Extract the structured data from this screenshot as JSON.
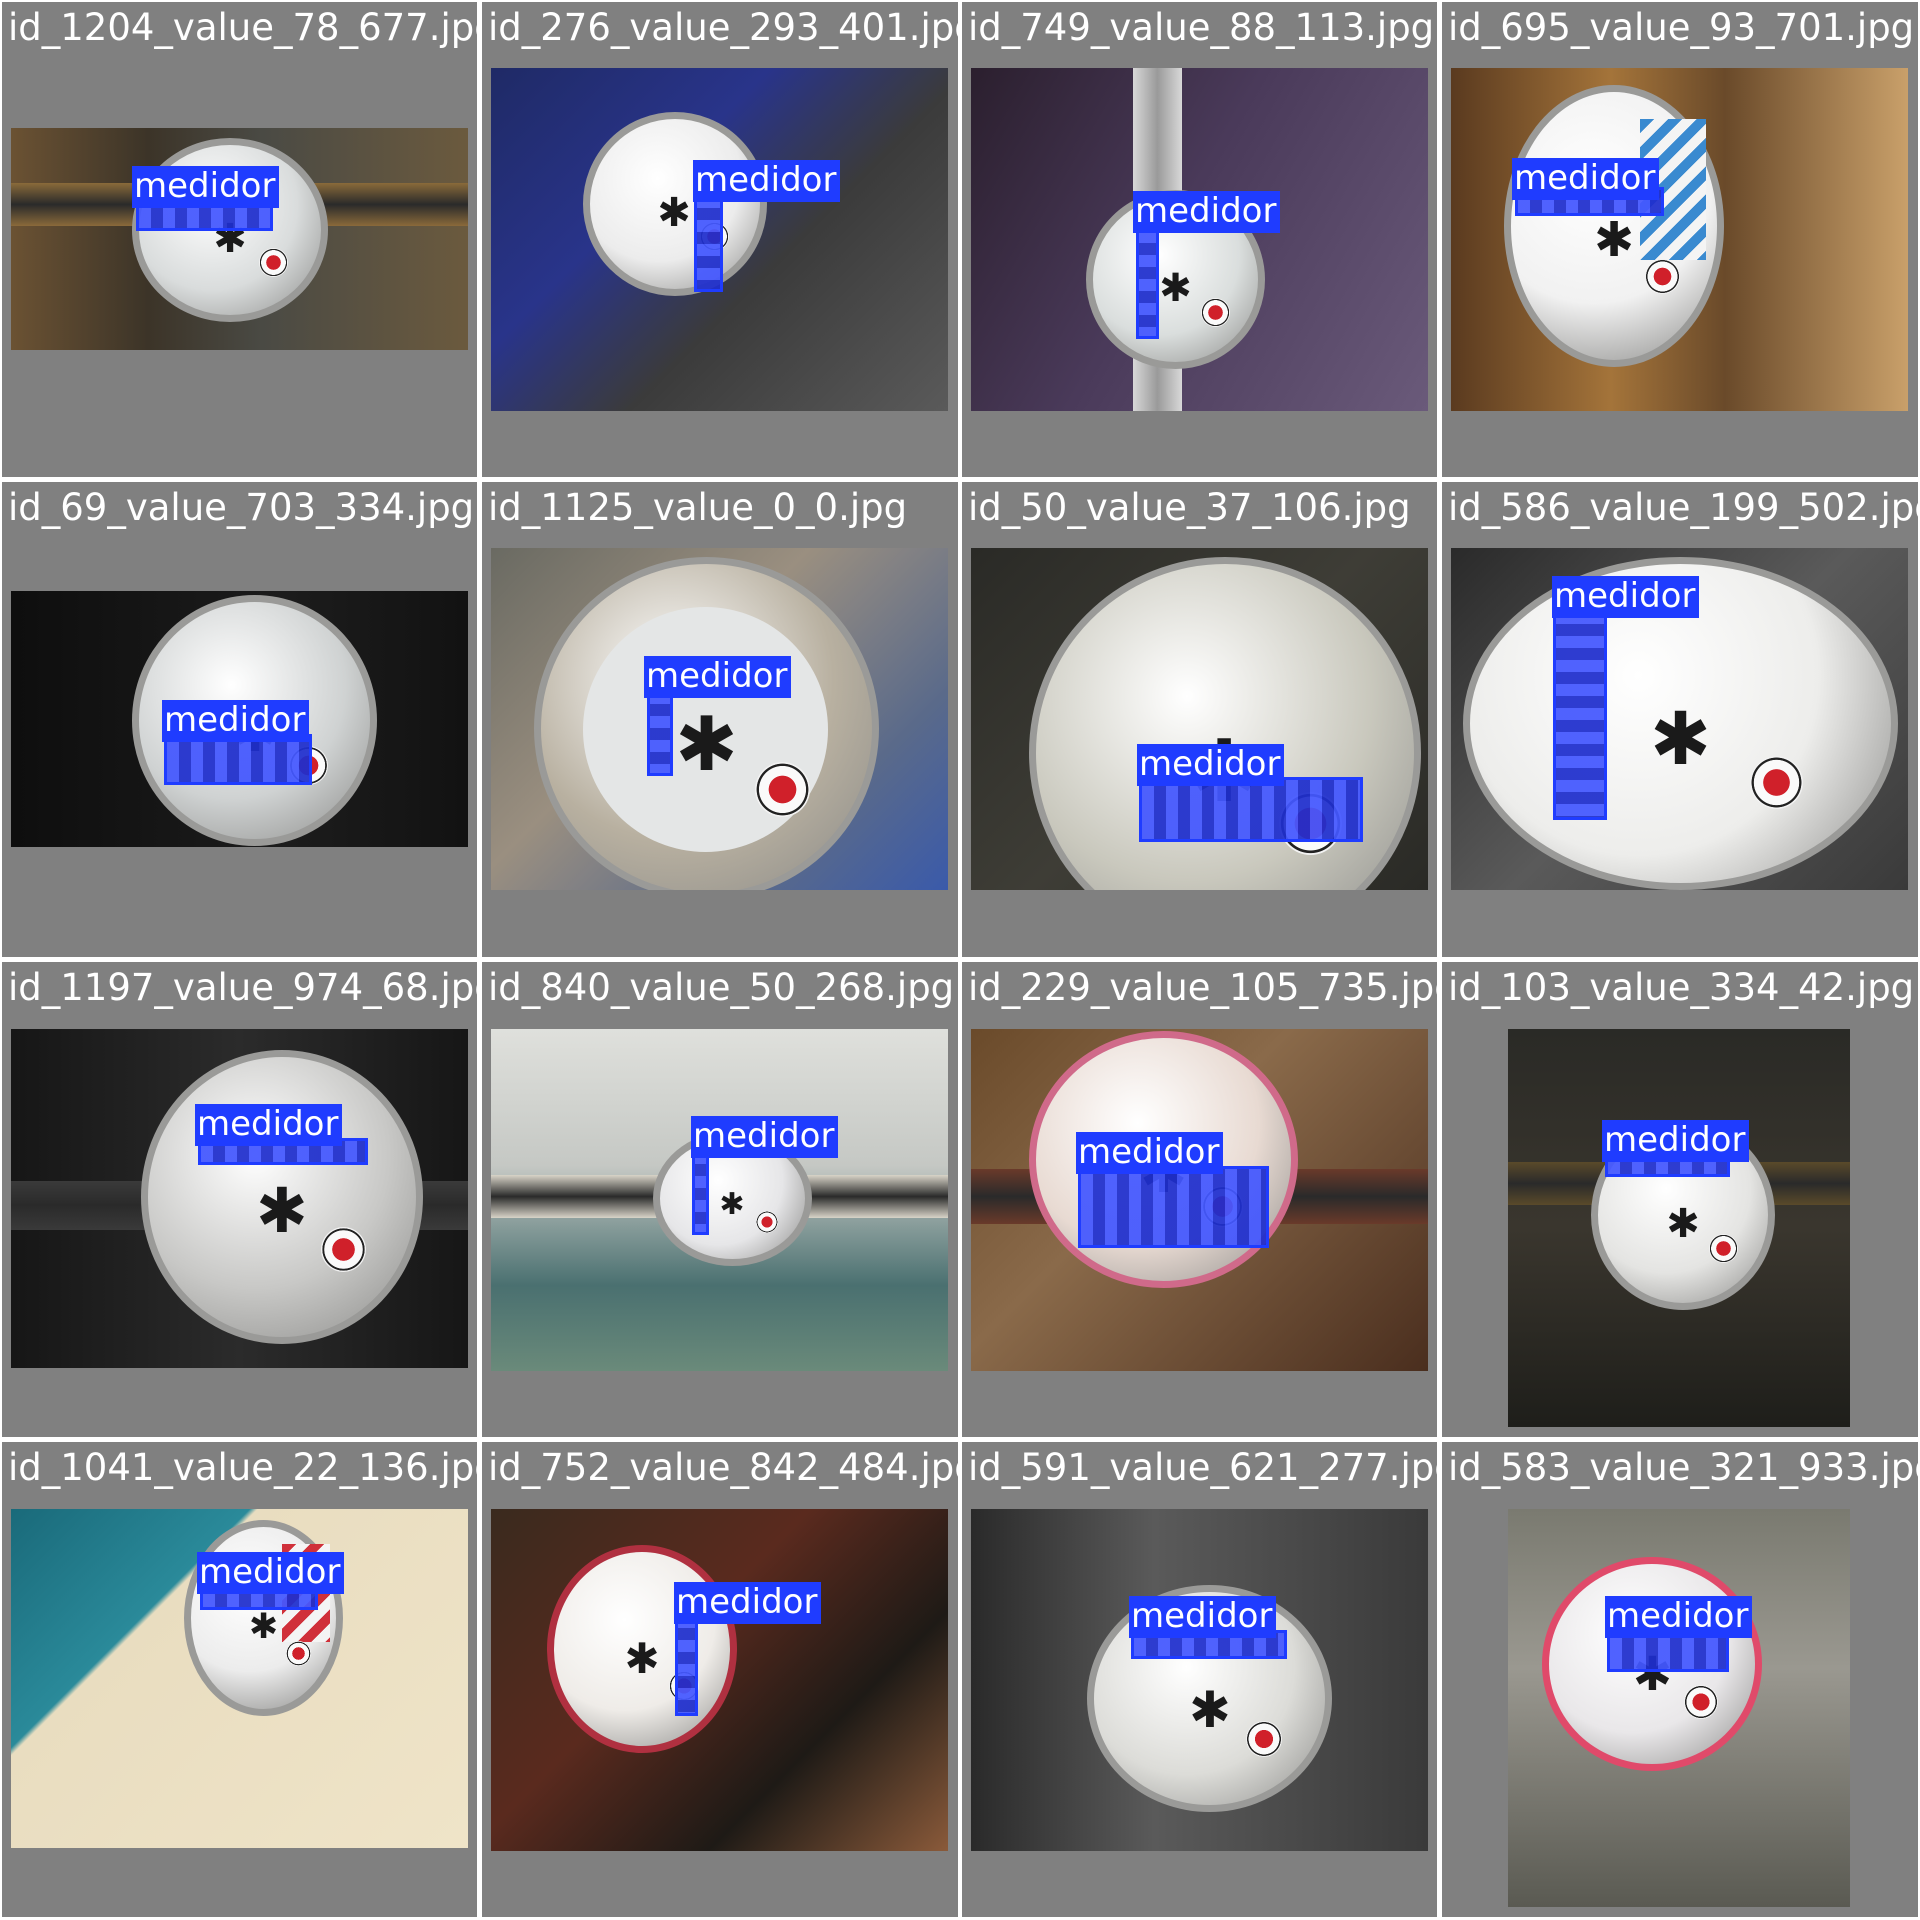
{
  "colors": {
    "tile_background": "#808080",
    "detection_box": "#1f3cff",
    "label_text": "#ffffff"
  },
  "detection_label": "medidor",
  "tiles": [
    {
      "filename": "id_1204_value_78_677.jpg",
      "icon": "water-meter-photo"
    },
    {
      "filename": "id_276_value_293_401.jpg",
      "icon": "water-meter-photo"
    },
    {
      "filename": "id_749_value_88_113.jpg",
      "icon": "water-meter-photo"
    },
    {
      "filename": "id_695_value_93_701.jpg",
      "icon": "water-meter-photo"
    },
    {
      "filename": "id_69_value_703_334.jpg",
      "icon": "water-meter-photo"
    },
    {
      "filename": "id_1125_value_0_0.jpg",
      "icon": "water-meter-photo"
    },
    {
      "filename": "id_50_value_37_106.jpg",
      "icon": "water-meter-photo"
    },
    {
      "filename": "id_586_value_199_502.jpg",
      "icon": "water-meter-photo"
    },
    {
      "filename": "id_1197_value_974_68.jpg",
      "icon": "water-meter-photo"
    },
    {
      "filename": "id_840_value_50_268.jpg",
      "icon": "water-meter-photo"
    },
    {
      "filename": "id_229_value_105_735.jpg",
      "icon": "water-meter-photo"
    },
    {
      "filename": "id_103_value_334_42.jpg",
      "icon": "water-meter-photo"
    },
    {
      "filename": "id_1041_value_22_136.jpg",
      "icon": "water-meter-photo"
    },
    {
      "filename": "id_752_value_842_484.jpg",
      "icon": "water-meter-photo"
    },
    {
      "filename": "id_591_value_621_277.jpg",
      "icon": "water-meter-photo"
    },
    {
      "filename": "id_583_value_321_933.jpg",
      "icon": "water-meter-photo"
    }
  ]
}
